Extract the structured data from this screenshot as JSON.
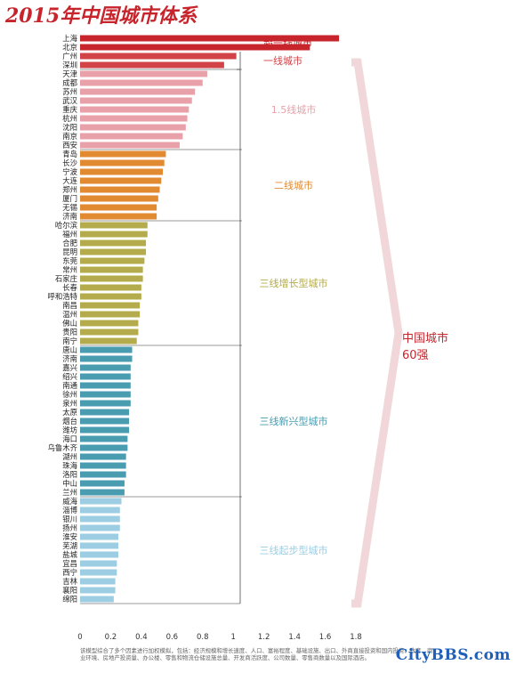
{
  "title": "2015年中国城市体系",
  "footnote": "该模型综合了多个因素进行加权模拟，包括：经济规模和增长速度、人口、富裕程度、基础设施、出口、外商直接投资和国内投资、教育、商业环境、房地产投资量、办公楼、零售和物流仓储设施总量、开发商活跃度、公司数量、零售商数量以及国际酒店。",
  "watermark": "CityBBS.com",
  "summary_label_line1": "中国城市",
  "summary_label_line2": "60强",
  "colors": {
    "tier1_super": "#c8242c",
    "tier1": "#d24348",
    "tier15": "#e8a1a8",
    "tier2": "#e18a32",
    "tier3_growth": "#b4ac4c",
    "tier3_emerging": "#4a9db0",
    "tier3_starting": "#9dcde2"
  },
  "chart_data": {
    "type": "bar",
    "orientation": "horizontal",
    "xlim": [
      0,
      1.8
    ],
    "x_ticks": [
      0,
      0.2,
      0.4,
      0.6,
      0.8,
      1,
      1.2,
      1.4,
      1.6,
      1.8
    ],
    "x_tick_labels": [
      "0",
      "0.2",
      "0.4",
      "0.6",
      "0.8",
      "1",
      "1.2",
      "1.4",
      "1.6",
      "1.8"
    ],
    "groups": [
      {
        "label": "超一线城市",
        "color": "#c8242c",
        "categories": [
          "上海",
          "北京"
        ],
        "values": [
          1.69,
          1.5
        ]
      },
      {
        "label": "一线城市",
        "color": "#d24348",
        "categories": [
          "广州",
          "深圳"
        ],
        "values": [
          1.02,
          0.94
        ]
      },
      {
        "label": "1.5线城市",
        "color": "#e8a1a8",
        "categories": [
          "天津",
          "成都",
          "苏州",
          "武汉",
          "重庆",
          "杭州",
          "沈阳",
          "南京",
          "西安"
        ],
        "values": [
          0.83,
          0.8,
          0.75,
          0.73,
          0.71,
          0.7,
          0.69,
          0.67,
          0.65
        ]
      },
      {
        "label": "二线城市",
        "color": "#e18a32",
        "categories": [
          "青岛",
          "长沙",
          "宁波",
          "大连",
          "郑州",
          "厦门",
          "无锡",
          "济南"
        ],
        "values": [
          0.56,
          0.55,
          0.54,
          0.53,
          0.52,
          0.51,
          0.5,
          0.5
        ]
      },
      {
        "label": "三线增长型城市",
        "color": "#b4ac4c",
        "categories": [
          "哈尔滨",
          "福州",
          "合肥",
          "昆明",
          "东莞",
          "常州",
          "石家庄",
          "长春",
          "呼和浩特",
          "南昌",
          "温州",
          "佛山",
          "贵阳",
          "南宁"
        ],
        "values": [
          0.44,
          0.44,
          0.43,
          0.43,
          0.42,
          0.41,
          0.41,
          0.4,
          0.4,
          0.39,
          0.39,
          0.38,
          0.38,
          0.37
        ]
      },
      {
        "label": "三线新兴型城市",
        "color": "#4a9db0",
        "categories": [
          "唐山",
          "济南",
          "嘉兴",
          "绍兴",
          "南通",
          "徐州",
          "泉州",
          "太原",
          "烟台",
          "潍坊",
          "海口",
          "乌鲁木齐",
          "湖州",
          "珠海",
          "洛阳",
          "中山",
          "兰州"
        ],
        "values": [
          0.34,
          0.34,
          0.33,
          0.33,
          0.33,
          0.33,
          0.33,
          0.32,
          0.32,
          0.32,
          0.31,
          0.31,
          0.3,
          0.3,
          0.3,
          0.29,
          0.29
        ]
      },
      {
        "label": "三线起步型城市",
        "color": "#9dcde2",
        "categories": [
          "威海",
          "淄博",
          "银川",
          "扬州",
          "淮安",
          "芜湖",
          "盐城",
          "宜昌",
          "西宁",
          "吉林",
          "襄阳",
          "绵阳"
        ],
        "values": [
          0.27,
          0.26,
          0.26,
          0.26,
          0.25,
          0.25,
          0.25,
          0.24,
          0.24,
          0.23,
          0.23,
          0.22
        ]
      }
    ]
  }
}
